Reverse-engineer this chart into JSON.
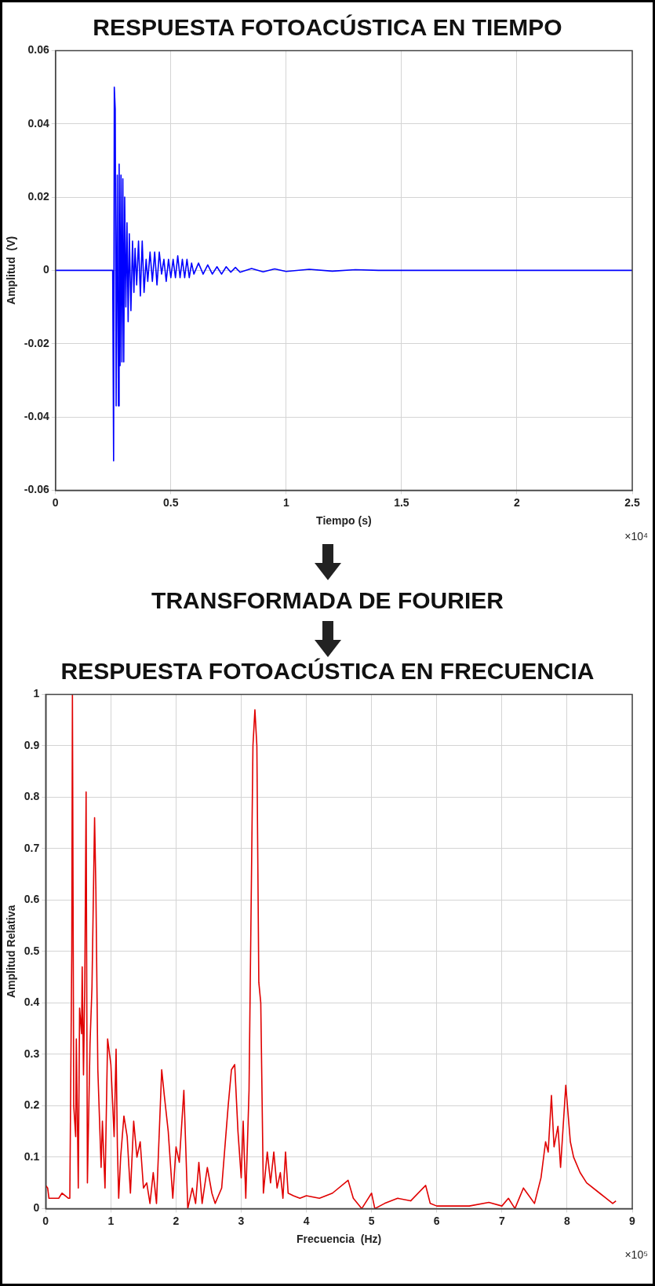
{
  "chart_data": [
    {
      "type": "line",
      "title": "RESPUESTA FOTOACÚSTICA EN TIEMPO",
      "xlabel": "Tiempo (s)",
      "ylabel": "Amplitud  (V)",
      "annotations": [
        "×10⁴",
        "TRANSFORMADA DE FOURIER"
      ],
      "xlim": [
        0,
        2.5
      ],
      "xticks": [
        0,
        0.5,
        1,
        1.5,
        2,
        2.5
      ],
      "ylim": [
        -0.06,
        0.06
      ],
      "yticks": [
        -0.06,
        -0.04,
        -0.02,
        0,
        0.02,
        0.04,
        0.06
      ],
      "grid": true,
      "x": [
        0,
        0.1,
        0.2,
        0.248,
        0.252,
        0.255,
        0.259,
        0.263,
        0.268,
        0.273,
        0.276,
        0.28,
        0.284,
        0.288,
        0.292,
        0.296,
        0.3,
        0.305,
        0.31,
        0.315,
        0.32,
        0.327,
        0.334,
        0.34,
        0.345,
        0.352,
        0.36,
        0.368,
        0.376,
        0.384,
        0.393,
        0.4,
        0.41,
        0.42,
        0.43,
        0.44,
        0.45,
        0.46,
        0.47,
        0.48,
        0.49,
        0.5,
        0.51,
        0.52,
        0.53,
        0.54,
        0.55,
        0.56,
        0.57,
        0.58,
        0.59,
        0.6,
        0.62,
        0.64,
        0.66,
        0.68,
        0.7,
        0.72,
        0.74,
        0.76,
        0.78,
        0.8,
        0.85,
        0.9,
        0.95,
        1,
        1.1,
        1.2,
        1.3,
        1.4,
        2.5
      ],
      "series": [
        {
          "color": "#0000ff",
          "values": [
            0,
            0,
            0,
            0,
            -0.052,
            0.05,
            0.044,
            -0.037,
            0.026,
            -0.037,
            0.029,
            -0.026,
            0.026,
            -0.025,
            0.025,
            -0.025,
            0.02,
            -0.01,
            0.013,
            -0.014,
            0.01,
            -0.011,
            0.008,
            -0.006,
            0.006,
            -0.004,
            0.008,
            -0.007,
            0.008,
            -0.006,
            0.003,
            -0.003,
            0.005,
            -0.003,
            0.005,
            -0.004,
            0.005,
            -0.001,
            0.003,
            -0.003,
            0.003,
            -0.002,
            0.003,
            -0.002,
            0.004,
            -0.002,
            0.003,
            -0.002,
            0.003,
            -0.002,
            0.002,
            -0.001,
            0.002,
            -0.001,
            0.0015,
            -0.001,
            0.001,
            -0.001,
            0.001,
            -0.0005,
            0.0008,
            -0.0005,
            0.0005,
            -0.0004,
            0.0004,
            -0.0003,
            0.0003,
            -0.0002,
            0.0002,
            0,
            0
          ]
        }
      ]
    },
    {
      "type": "line",
      "title": "RESPUESTA FOTOACÚSTICA EN FRECUENCIA",
      "xlabel": "Frecuencia  (Hz)",
      "ylabel": "Amplitud Relativa",
      "annotations": [
        "×10⁵"
      ],
      "xlim": [
        0,
        9
      ],
      "xticks": [
        0,
        1,
        2,
        3,
        4,
        5,
        6,
        7,
        8,
        9
      ],
      "ylim": [
        0,
        1
      ],
      "yticks": [
        0,
        0.1,
        0.2,
        0.3,
        0.4,
        0.5,
        0.6,
        0.7,
        0.8,
        0.9,
        1
      ],
      "grid": true,
      "x": [
        0,
        0.03,
        0.05,
        0.1,
        0.2,
        0.25,
        0.35,
        0.37,
        0.4,
        0.41,
        0.43,
        0.46,
        0.47,
        0.5,
        0.52,
        0.55,
        0.56,
        0.58,
        0.6,
        0.62,
        0.64,
        0.68,
        0.71,
        0.75,
        0.77,
        0.8,
        0.85,
        0.87,
        0.91,
        0.95,
        1,
        1.05,
        1.08,
        1.1,
        1.12,
        1.15,
        1.2,
        1.25,
        1.3,
        1.35,
        1.4,
        1.45,
        1.5,
        1.55,
        1.6,
        1.65,
        1.7,
        1.78,
        1.82,
        1.88,
        1.95,
        2,
        2.05,
        2.12,
        2.18,
        2.25,
        2.3,
        2.35,
        2.4,
        2.48,
        2.55,
        2.6,
        2.7,
        2.8,
        2.85,
        2.9,
        2.95,
        3,
        3.03,
        3.07,
        3.12,
        3.18,
        3.21,
        3.24,
        3.27,
        3.3,
        3.34,
        3.4,
        3.45,
        3.5,
        3.55,
        3.6,
        3.64,
        3.68,
        3.72,
        3.8,
        3.9,
        4,
        4.2,
        4.4,
        4.64,
        4.72,
        4.85,
        5,
        5.05,
        5.2,
        5.4,
        5.6,
        5.83,
        5.9,
        6,
        6.2,
        6.5,
        6.8,
        7,
        7.1,
        7.2,
        7.33,
        7.5,
        7.6,
        7.67,
        7.71,
        7.76,
        7.8,
        7.86,
        7.9,
        7.98,
        8.05,
        8.1,
        8.2,
        8.3,
        8.5,
        8.7,
        8.75
      ],
      "series": [
        {
          "color": "#e00000",
          "values": [
            0.045,
            0.04,
            0.02,
            0.02,
            0.02,
            0.03,
            0.02,
            0.02,
            0.5,
            1,
            0.2,
            0.14,
            0.33,
            0.04,
            0.39,
            0.34,
            0.47,
            0.26,
            0.44,
            0.81,
            0.05,
            0.32,
            0.43,
            0.76,
            0.62,
            0.27,
            0.08,
            0.17,
            0.04,
            0.33,
            0.28,
            0.14,
            0.31,
            0.12,
            0.02,
            0.1,
            0.18,
            0.14,
            0.03,
            0.17,
            0.1,
            0.13,
            0.04,
            0.05,
            0.01,
            0.07,
            0.01,
            0.27,
            0.22,
            0.15,
            0.02,
            0.12,
            0.09,
            0.23,
            0,
            0.04,
            0.01,
            0.09,
            0.01,
            0.08,
            0.03,
            0.01,
            0.04,
            0.2,
            0.27,
            0.28,
            0.15,
            0.06,
            0.17,
            0.02,
            0.23,
            0.9,
            0.97,
            0.9,
            0.44,
            0.4,
            0.03,
            0.11,
            0.05,
            0.11,
            0.04,
            0.07,
            0.02,
            0.11,
            0.03,
            0.025,
            0.02,
            0.025,
            0.02,
            0.03,
            0.055,
            0.02,
            0,
            0.03,
            0,
            0.01,
            0.02,
            0.015,
            0.045,
            0.01,
            0.005,
            0.005,
            0.005,
            0.012,
            0.005,
            0.02,
            0,
            0.04,
            0.01,
            0.06,
            0.13,
            0.11,
            0.22,
            0.12,
            0.16,
            0.08,
            0.24,
            0.13,
            0.1,
            0.07,
            0.05,
            0.03,
            0.01,
            0.015
          ]
        }
      ]
    }
  ]
}
